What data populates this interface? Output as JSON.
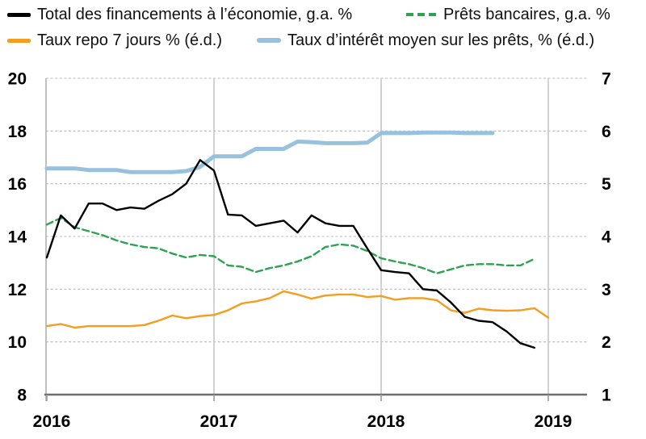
{
  "chart_data": {
    "type": "line",
    "title": "",
    "x_axis": {
      "unit": "month",
      "tick_labels": [
        "2016",
        "2017",
        "2018",
        "2019"
      ],
      "tick_month_indices": [
        0,
        12,
        24,
        36
      ]
    },
    "left_axis": {
      "min": 8,
      "max": 20,
      "ticks": [
        8,
        10,
        12,
        14,
        16,
        18,
        20
      ]
    },
    "right_axis": {
      "min": 1,
      "max": 7,
      "ticks": [
        1,
        2,
        3,
        4,
        5,
        6,
        7
      ]
    },
    "grid": {
      "horizontal_style": "dashed",
      "vertical_year_lines": true
    },
    "series": [
      {
        "name": "Total des financements à l’économie, g.a. %",
        "axis": "left",
        "color": "#000000",
        "line_style": "solid",
        "line_width": 2.4,
        "values": [
          13.2,
          14.8,
          14.3,
          15.25,
          15.25,
          15.0,
          15.1,
          15.05,
          15.35,
          15.6,
          16.0,
          16.9,
          16.5,
          14.83,
          14.8,
          14.4,
          14.5,
          14.6,
          14.15,
          14.8,
          14.5,
          14.4,
          14.4,
          13.55,
          12.72,
          12.65,
          12.6,
          12.0,
          11.95,
          11.5,
          10.95,
          10.8,
          10.75,
          10.4,
          9.95,
          9.78
        ]
      },
      {
        "name": "Prêts bancaires, g.a. %",
        "axis": "left",
        "color": "#2CA351",
        "line_style": "dashed",
        "line_width": 2.4,
        "values": [
          14.45,
          14.7,
          14.35,
          14.2,
          14.05,
          13.85,
          13.7,
          13.6,
          13.55,
          13.35,
          13.2,
          13.3,
          13.25,
          12.9,
          12.85,
          12.65,
          12.8,
          12.9,
          13.05,
          13.25,
          13.6,
          13.7,
          13.65,
          13.45,
          13.17,
          13.05,
          12.95,
          12.8,
          12.6,
          12.75,
          12.9,
          12.95,
          12.95,
          12.9,
          12.9,
          13.15
        ]
      },
      {
        "name": "Taux repo 7 jours % (é.d.)",
        "axis": "right",
        "color": "#F59D20",
        "line_style": "solid",
        "line_width": 2.4,
        "values": [
          2.3,
          2.34,
          2.27,
          2.3,
          2.3,
          2.3,
          2.3,
          2.32,
          2.4,
          2.5,
          2.45,
          2.49,
          2.51,
          2.6,
          2.73,
          2.77,
          2.83,
          2.96,
          2.9,
          2.82,
          2.88,
          2.9,
          2.9,
          2.85,
          2.87,
          2.8,
          2.83,
          2.83,
          2.79,
          2.6,
          2.55,
          2.63,
          2.6,
          2.59,
          2.6,
          2.64,
          2.46
        ]
      },
      {
        "name": "Taux d’intérêt moyen sur les prêts, % (é.d.)",
        "axis": "right",
        "color": "#97C1DD",
        "line_style": "solid",
        "line_width": 5,
        "values": [
          5.29,
          5.29,
          5.29,
          5.26,
          5.26,
          5.26,
          5.22,
          5.22,
          5.22,
          5.22,
          5.24,
          5.32,
          5.52,
          5.52,
          5.52,
          5.66,
          5.66,
          5.66,
          5.8,
          5.79,
          5.77,
          5.77,
          5.77,
          5.78,
          5.96,
          5.96,
          5.96,
          5.97,
          5.97,
          5.97,
          5.96,
          5.96,
          5.96
        ]
      }
    ]
  }
}
